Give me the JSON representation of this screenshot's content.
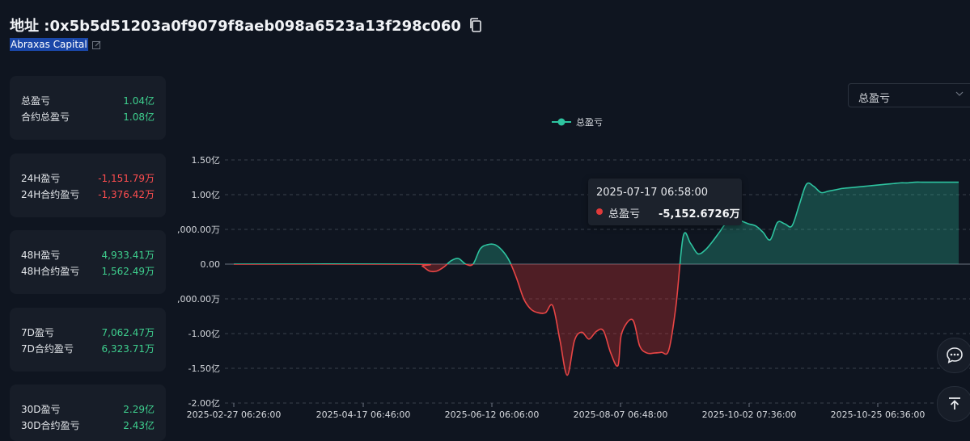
{
  "header": {
    "address_label": "地址 :",
    "address": "0x5b5d51203a0f9079f8aeb098a6523a13f298c060",
    "alias": "Abraxas Capital"
  },
  "cards": [
    {
      "rows": [
        {
          "label": "总盈亏",
          "value": "1.04亿",
          "sign": "pos"
        },
        {
          "label": "合约总盈亏",
          "value": "1.08亿",
          "sign": "pos"
        }
      ]
    },
    {
      "rows": [
        {
          "label": "24H盈亏",
          "value": "-1,151.79万",
          "sign": "neg"
        },
        {
          "label": "24H合约盈亏",
          "value": "-1,376.42万",
          "sign": "neg"
        }
      ]
    },
    {
      "rows": [
        {
          "label": "48H盈亏",
          "value": "4,933.41万",
          "sign": "pos"
        },
        {
          "label": "48H合约盈亏",
          "value": "1,562.49万",
          "sign": "pos"
        }
      ]
    },
    {
      "rows": [
        {
          "label": "7D盈亏",
          "value": "7,062.47万",
          "sign": "pos"
        },
        {
          "label": "7D合约盈亏",
          "value": "6,323.71万",
          "sign": "pos"
        }
      ]
    },
    {
      "rows": [
        {
          "label": "30D盈亏",
          "value": "2.29亿",
          "sign": "pos"
        },
        {
          "label": "30D合约盈亏",
          "value": "2.43亿",
          "sign": "pos"
        }
      ]
    }
  ],
  "select": {
    "value": "总盈亏"
  },
  "tooltip": {
    "time": "2025-07-17 06:58:00",
    "name": "总盈亏",
    "value": "-5,152.6726万"
  },
  "colors": {
    "positive": "#3ecf8e",
    "negative": "#ff4d4f",
    "line_pos": "#2ec4a0",
    "line_neg": "#e84545",
    "background": "#0f1520"
  },
  "icons": {
    "copy": "copy-icon",
    "edit": "edit-icon",
    "chevron": "chevron-down-icon",
    "chat": "chat-icon",
    "top": "back-to-top-icon"
  },
  "chart_data": {
    "type": "area",
    "series": [
      {
        "name": "总盈亏"
      }
    ],
    "x_ticks": [
      "2025-02-27 06:26:00",
      "2025-04-17 06:46:00",
      "2025-06-12 06:06:00",
      "2025-08-07 06:48:00",
      "2025-10-02 07:36:00",
      "2025-10-25 06:36:00"
    ],
    "y_tick_labels": [
      "1.50亿",
      "1.00亿",
      ",000.00万",
      "0.00",
      ",000.00万",
      "-1.00亿",
      "-1.50亿",
      "-2.00亿"
    ],
    "y_tick_values": [
      150,
      100,
      50,
      0,
      -50,
      -100,
      -150,
      -200
    ],
    "ylim": [
      -200,
      150
    ],
    "y_unit": "百万",
    "x": [
      0,
      0.25,
      0.26,
      0.27,
      0.28,
      0.29,
      0.3,
      0.31,
      0.32,
      0.33,
      0.34,
      0.35,
      0.36,
      0.37,
      0.38,
      0.39,
      0.4,
      0.41,
      0.42,
      0.43,
      0.44,
      0.45,
      0.46,
      0.47,
      0.48,
      0.49,
      0.5,
      0.51,
      0.52,
      0.53,
      0.535,
      0.55,
      0.56,
      0.57,
      0.58,
      0.59,
      0.6,
      0.61,
      0.62,
      0.63,
      0.64,
      0.65,
      0.66,
      0.67,
      0.68,
      0.69,
      0.7,
      0.71,
      0.72,
      0.73,
      0.74,
      0.75,
      0.76,
      0.77,
      0.78,
      0.79,
      0.8,
      0.81,
      0.82,
      0.83,
      0.84,
      0.85,
      0.86,
      0.87,
      0.88,
      0.89,
      0.9,
      0.91,
      0.92,
      0.93,
      0.94,
      0.95,
      0.96,
      0.97,
      0.98,
      0.99,
      1.0
    ],
    "y": [
      0,
      0,
      -3,
      -10,
      -10,
      -4,
      5,
      8,
      0,
      0,
      22,
      28,
      28,
      20,
      5,
      -20,
      -50,
      -65,
      -70,
      -70,
      -60,
      -110,
      -160,
      -110,
      -98,
      -108,
      -97,
      -96,
      -128,
      -146,
      -100,
      -80,
      -118,
      -128,
      -128,
      -127,
      -124,
      -60,
      40,
      30,
      15,
      20,
      32,
      46,
      60,
      63,
      62,
      58,
      55,
      46,
      35,
      60,
      58,
      55,
      85,
      115,
      112,
      103,
      105,
      107,
      109,
      110,
      111,
      112,
      113,
      114,
      115,
      116,
      117,
      117,
      118,
      118,
      118,
      118,
      118,
      118,
      118
    ]
  }
}
